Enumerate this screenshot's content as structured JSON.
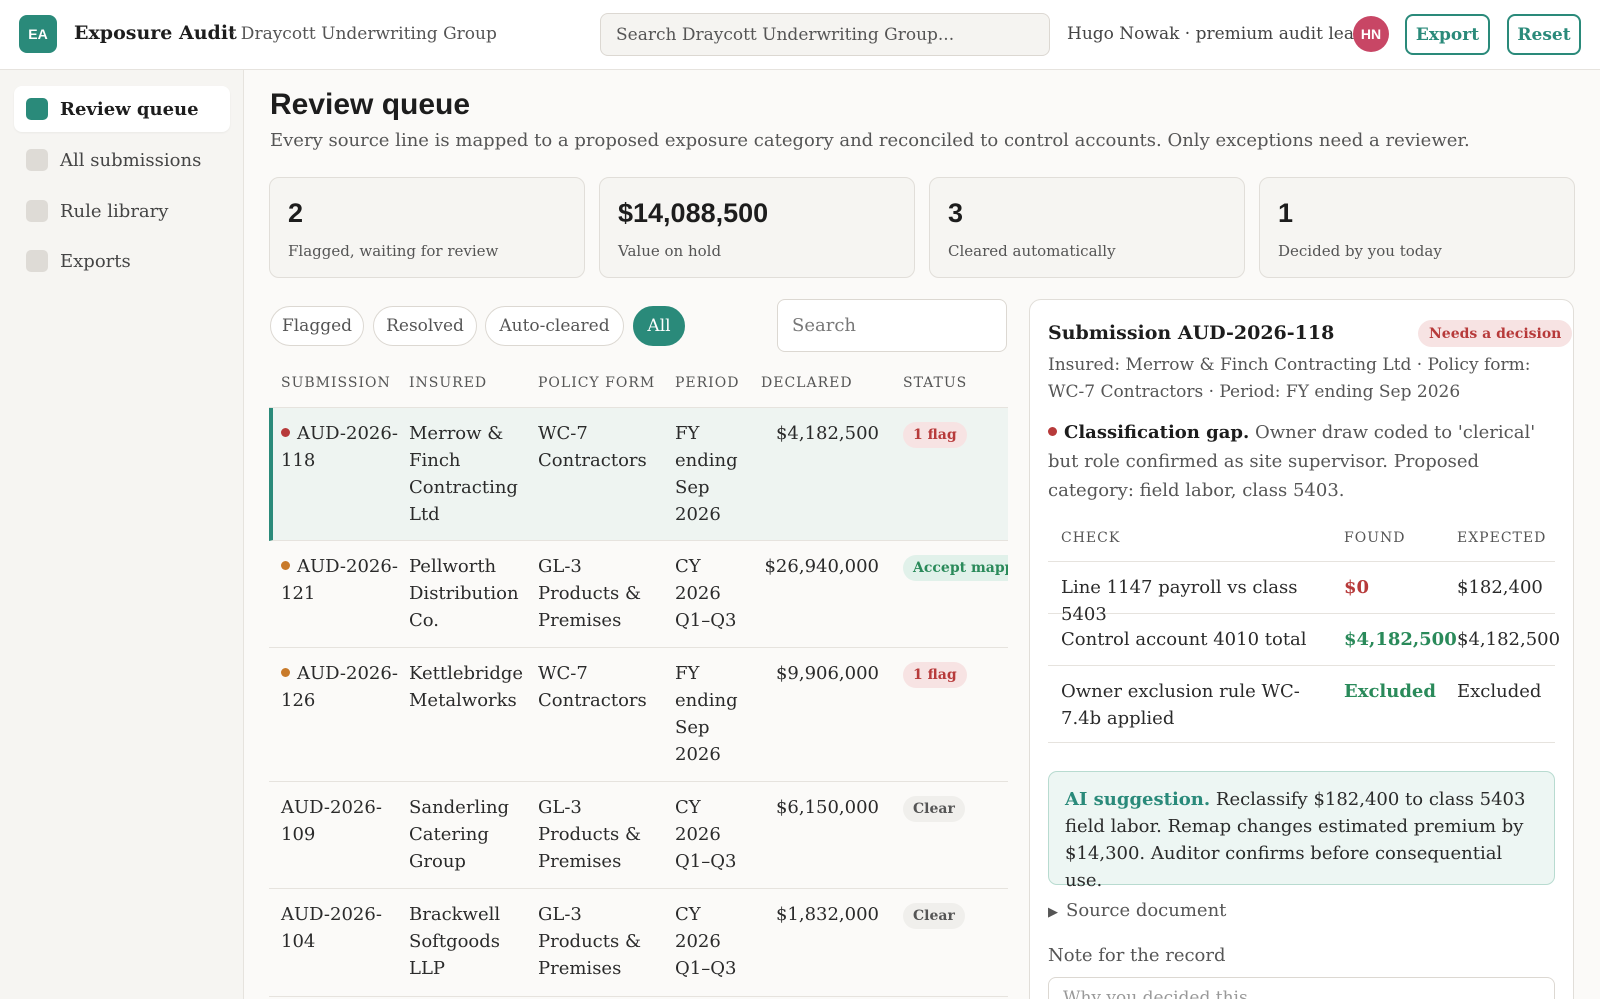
{
  "header": {
    "logo": "EA",
    "app_title": "Exposure Audit",
    "org": "· Draycott Underwriting Group",
    "search_placeholder": "Search Draycott Underwriting Group...",
    "user": "Hugo Nowak · premium audit lead",
    "avatar": "HN",
    "export_label": "Export",
    "reset_label": "Reset"
  },
  "sidebar": {
    "items": [
      {
        "label": "Review queue",
        "active": true
      },
      {
        "label": "All submissions",
        "active": false
      },
      {
        "label": "Rule library",
        "active": false
      },
      {
        "label": "Exports",
        "active": false
      }
    ]
  },
  "main": {
    "title": "Review queue",
    "subtitle": "Every source line is mapped to a proposed exposure category and reconciled to control accounts. Only exceptions need a reviewer.",
    "stats": [
      {
        "value": "2",
        "label": "Flagged, waiting for review"
      },
      {
        "value": "$14,088,500",
        "label": "Value on hold"
      },
      {
        "value": "3",
        "label": "Cleared automatically"
      },
      {
        "value": "1",
        "label": "Decided by you today"
      }
    ],
    "filters": [
      "Flagged",
      "Resolved",
      "Auto-cleared",
      "All"
    ],
    "active_filter": "All",
    "table_search_placeholder": "Search",
    "columns": [
      "SUBMISSION",
      "INSURED",
      "POLICY FORM",
      "PERIOD",
      "DECLARED",
      "STATUS"
    ],
    "rows": [
      {
        "id": "AUD-2026-118",
        "insured": "Merrow & Finch Contracting Ltd",
        "form": "WC-7 Contractors",
        "period": "FY ending Sep 2026",
        "declared": "$4,182,500",
        "status": "1 flag"
      },
      {
        "id": "AUD-2026-121",
        "insured": "Pellworth Distribution Co.",
        "form": "GL-3 Products & Premises",
        "period": "CY 2026 Q1–Q3",
        "declared": "$26,940,000",
        "status": "Accept mapping"
      },
      {
        "id": "AUD-2026-126",
        "insured": "Kettlebridge Metalworks",
        "form": "WC-7 Contractors",
        "period": "FY ending Sep 2026",
        "declared": "$9,906,000",
        "status": "1 flag"
      },
      {
        "id": "AUD-2026-109",
        "insured": "Sanderling Catering Group",
        "form": "GL-3 Products & Premises",
        "period": "CY 2026 Q1–Q3",
        "declared": "$6,150,000",
        "status": "Clear"
      },
      {
        "id": "AUD-2026-104",
        "insured": "Brackwell Softgoods LLP",
        "form": "GL-3 Products & Premises",
        "period": "CY 2026 Q1–Q3",
        "declared": "$1,832,000",
        "status": "Clear"
      }
    ]
  },
  "detail": {
    "title": "Submission AUD-2026-118",
    "badge": "Needs a decision",
    "meta": "Insured: Merrow & Finch Contracting Ltd · Policy form: WC-7 Contractors · Period: FY ending Sep 2026",
    "issue_title": "Classification gap.",
    "issue_text": "Owner draw coded to 'clerical' but role confirmed as site supervisor. Proposed category: field labor, class 5403.",
    "check_columns": [
      "CHECK",
      "FOUND",
      "EXPECTED"
    ],
    "checks": [
      {
        "check": "Line 1147 payroll vs class 5403",
        "found": "$0",
        "expected": "$182,400"
      },
      {
        "check": "Control account 4010 total",
        "found": "$4,182,500",
        "expected": "$4,182,500"
      },
      {
        "check": "Owner exclusion rule WC-7.4b applied",
        "found": "Excluded",
        "expected": "Excluded"
      }
    ],
    "ai_label": "AI suggestion.",
    "ai_text": "Reclassify $182,400 to class 5403 field labor. Remap changes estimated premium by $14,300. Auditor confirms before consequential use.",
    "source_doc": "Source document",
    "note_label": "Note for the record",
    "note_placeholder": "Why you decided this..."
  },
  "colors": {
    "accent": "#2a8a7a",
    "danger": "#b73a3a",
    "success": "#2a8a5a",
    "warning": "#c87a2a"
  }
}
